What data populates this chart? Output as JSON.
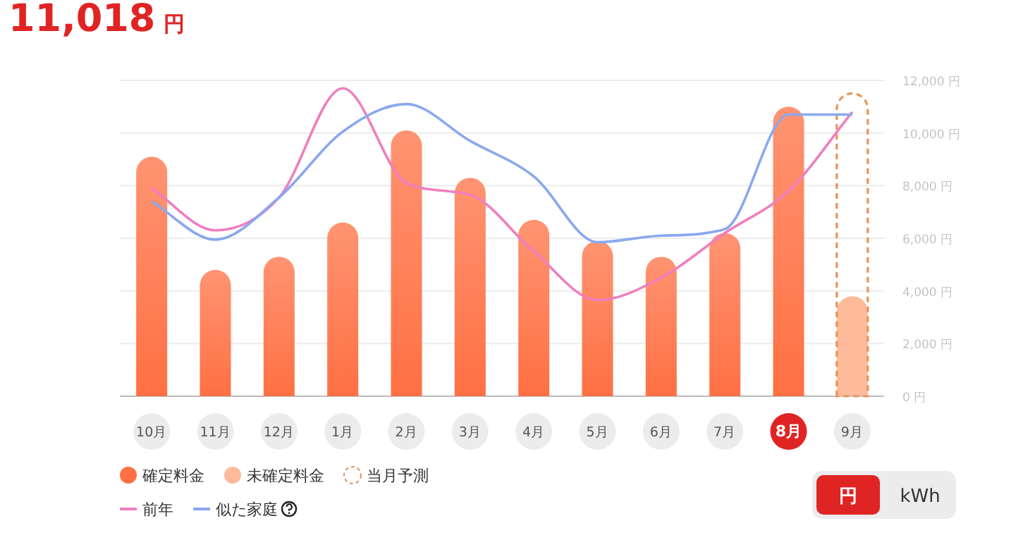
{
  "chart_data": {
    "type": "bar",
    "title": "11,018 円",
    "categories": [
      "10月",
      "11月",
      "12月",
      "1月",
      "2月",
      "3月",
      "4月",
      "5月",
      "6月",
      "7月",
      "8月",
      "9月"
    ],
    "series": [
      {
        "name": "確定料金",
        "color": "#ff7043",
        "values": [
          9100,
          4800,
          5300,
          6600,
          10100,
          8300,
          6700,
          5900,
          5300,
          6200,
          11000,
          null
        ]
      },
      {
        "name": "未確定料金",
        "color": "#fdbb9a",
        "values": [
          null,
          null,
          null,
          null,
          null,
          null,
          null,
          null,
          null,
          null,
          null,
          3800
        ]
      },
      {
        "name": "当月予測",
        "line_style": "dashed",
        "color": "#e8935a",
        "values": [
          null,
          null,
          null,
          null,
          null,
          null,
          null,
          null,
          null,
          null,
          null,
          11500
        ]
      },
      {
        "name": "前年",
        "type": "line",
        "color": "#ee7fbf",
        "values": [
          7900,
          6300,
          7550,
          11700,
          8100,
          7650,
          5500,
          3650,
          4500,
          6200,
          7800,
          10800
        ]
      },
      {
        "name": "似た家庭",
        "type": "line",
        "color": "#8aa8ee",
        "values": [
          7400,
          5950,
          7550,
          10050,
          11100,
          9700,
          8350,
          5850,
          6100,
          6350,
          10700,
          10700
        ]
      }
    ],
    "ylim": [
      0,
      12000
    ],
    "yticks": [
      {
        "value": 0,
        "label": "0 円"
      },
      {
        "value": 2000,
        "label": "2,000 円"
      },
      {
        "value": 4000,
        "label": "4,000 円"
      },
      {
        "value": 6000,
        "label": "6,000 円"
      },
      {
        "value": 8000,
        "label": "8,000 円"
      },
      {
        "value": 10000,
        "label": "10,000 円"
      },
      {
        "value": 12000,
        "label": "12,000 円"
      }
    ],
    "grid": "y",
    "legend": "bottom left",
    "annotations": [
      "円",
      "kWh"
    ]
  }
}
